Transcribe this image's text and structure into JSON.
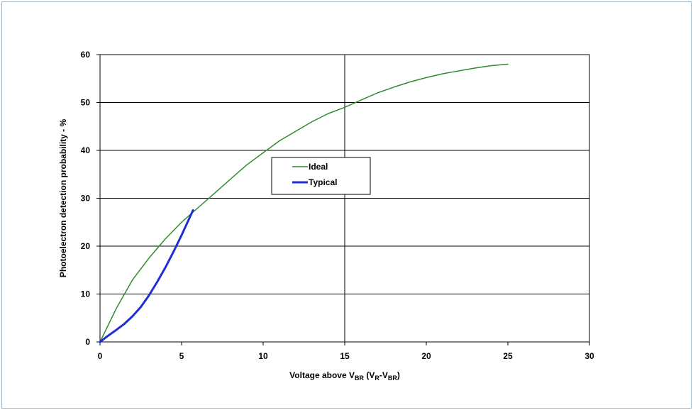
{
  "chart_data": {
    "type": "line",
    "title": "",
    "xlabel_main": "Voltage above V",
    "xlabel_sub1": "BR",
    "xlabel_mid": " (V",
    "xlabel_sub2": "R",
    "xlabel_dash": "-V",
    "xlabel_sub3": "BR",
    "xlabel_end": ")",
    "ylabel": "Photoelectron detection probability - %",
    "xlim": [
      0,
      30
    ],
    "ylim": [
      0,
      60
    ],
    "xticks": [
      0,
      5,
      10,
      15,
      20,
      25,
      30
    ],
    "yticks": [
      0,
      10,
      20,
      30,
      40,
      50,
      60
    ],
    "grid": "horizontal and vertical major gridlines",
    "legend_position": "center",
    "series": [
      {
        "name": "Ideal",
        "color": "#2e8b2e",
        "x": [
          0,
          1,
          2,
          3,
          4,
          5,
          6,
          7,
          8,
          9,
          10,
          11,
          12,
          13,
          14,
          15,
          16,
          17,
          18,
          19,
          20,
          21,
          22,
          23,
          24,
          25
        ],
        "y": [
          0,
          7,
          13,
          17.5,
          21.5,
          25,
          28,
          31,
          34,
          37,
          39.5,
          42,
          44,
          46,
          47.7,
          49,
          50.5,
          52,
          53.2,
          54.3,
          55.2,
          56,
          56.6,
          57.2,
          57.7,
          58
        ]
      },
      {
        "name": "Typical",
        "color": "#1f2fd6",
        "x": [
          0,
          0.5,
          1,
          1.5,
          2,
          2.5,
          3,
          3.5,
          4,
          4.5,
          5,
          5.5,
          5.7
        ],
        "y": [
          0,
          1.3,
          2.5,
          3.8,
          5.4,
          7.3,
          9.7,
          12.5,
          15.5,
          18.8,
          22.3,
          26.0,
          27.5
        ]
      }
    ]
  }
}
